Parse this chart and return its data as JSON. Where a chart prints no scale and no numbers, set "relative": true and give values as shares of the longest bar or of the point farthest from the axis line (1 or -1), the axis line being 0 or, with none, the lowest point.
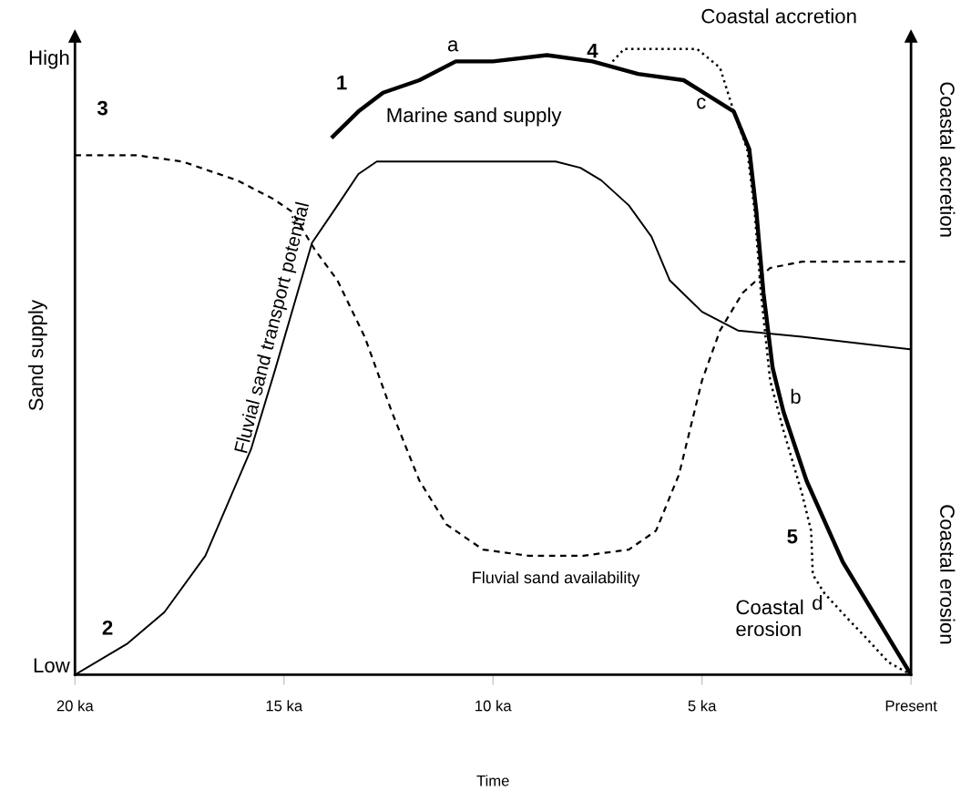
{
  "chart_data": {
    "type": "line",
    "relative": true,
    "xlabel": "Time",
    "ylabel": "Sand supply",
    "xlim": [
      20,
      0
    ],
    "xticks": [
      {
        "value": 20,
        "label": "20 ka"
      },
      {
        "value": 15,
        "label": "15 ka"
      },
      {
        "value": 10,
        "label": "10 ka"
      },
      {
        "value": 5,
        "label": "5 ka"
      },
      {
        "value": 0,
        "label": "Present"
      }
    ],
    "grid": false,
    "marker": "none",
    "series": [
      {
        "color": "#000000",
        "line_style": "solid",
        "x": [
          20,
          18.74,
          17.86,
          16.88,
          15.79,
          15.2,
          14.33,
          13.72,
          13.22,
          12.78,
          11.55,
          10.0,
          8.5,
          7.91,
          7.41,
          6.75,
          6.21,
          5.77,
          5.0,
          4.14,
          2.61,
          0
        ],
        "values": [
          0,
          0.05,
          0.1,
          0.19,
          0.36,
          0.49,
          0.69,
          0.75,
          0.8,
          0.82,
          0.82,
          0.82,
          0.82,
          0.81,
          0.79,
          0.75,
          0.7,
          0.63,
          0.58,
          0.55,
          0.54,
          0.52
        ]
      },
      {
        "color": "#000000",
        "line_style": "dashed",
        "x": [
          20,
          18.52,
          17.43,
          16.12,
          15.25,
          14.81,
          14.27,
          13.72,
          13.07,
          12.42,
          11.76,
          11.11,
          10.24,
          9.15,
          7.84,
          6.75,
          6.1,
          5.55,
          5.0,
          4.57,
          4.03,
          3.37,
          2.61,
          0
        ],
        "values": [
          0.83,
          0.83,
          0.82,
          0.79,
          0.76,
          0.74,
          0.68,
          0.63,
          0.54,
          0.42,
          0.31,
          0.24,
          0.2,
          0.19,
          0.19,
          0.2,
          0.23,
          0.32,
          0.47,
          0.55,
          0.61,
          0.65,
          0.66,
          0.66
        ]
      },
      {
        "color": "#000000",
        "line_style": "solid",
        "x": [
          13.83,
          13.22,
          12.63,
          11.76,
          10.89,
          10.0,
          8.71,
          7.62,
          6.53,
          5.44,
          4.24,
          3.87,
          3.7,
          3.53,
          3.31,
          3.05,
          2.5,
          1.63,
          0
        ],
        "values": [
          0.86,
          0.9,
          0.93,
          0.95,
          0.98,
          0.98,
          0.99,
          0.98,
          0.96,
          0.95,
          0.9,
          0.84,
          0.74,
          0.61,
          0.49,
          0.42,
          0.31,
          0.18,
          0
        ]
      },
      {
        "color": "#000000",
        "line_style": "dotted",
        "x": [
          7.14,
          6.86,
          6.42,
          5.12,
          4.57,
          4.24,
          3.92,
          3.74,
          3.59,
          3.37,
          3.05,
          2.61,
          2.39,
          2.35,
          2.07,
          1.52,
          1.09,
          0.54,
          0
        ],
        "values": [
          0.98,
          1.0,
          1.0,
          1.0,
          0.97,
          0.9,
          0.84,
          0.74,
          0.61,
          0.47,
          0.39,
          0.29,
          0.23,
          0.16,
          0.13,
          0.09,
          0.06,
          0.02,
          0
        ]
      }
    ],
    "annotations": [
      "High",
      "Low",
      "1",
      "2",
      "3",
      "4",
      "5",
      "a",
      "b",
      "c",
      "d",
      "Marine sand supply",
      "Fluvial sand transport potential",
      "Fluvial sand availability",
      "Coastal accretion",
      "Coastal\nerosion",
      "Coastal accretion",
      "Coastal erosion"
    ]
  }
}
